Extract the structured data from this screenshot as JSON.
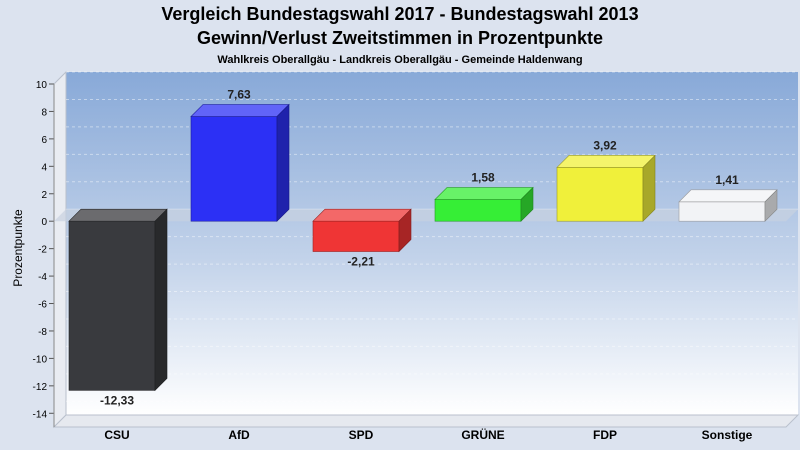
{
  "chart_data": {
    "type": "bar",
    "title": "Vergleich Bundestagswahl 2017 - Bundestagswahl 2013",
    "subtitle": "Gewinn/Verlust Zweitstimmen in Prozentpunkte",
    "caption": "Wahlkreis Oberallgäu - Landkreis Oberallgäu - Gemeinde Haldenwang",
    "xlabel": "",
    "ylabel": "Prozentpunkte",
    "ylim": [
      -15,
      10
    ],
    "yticks": [
      10,
      8,
      6,
      4,
      2,
      0,
      -2,
      -4,
      -6,
      -8,
      -10,
      -12,
      -14
    ],
    "categories": [
      "CSU",
      "AfD",
      "SPD",
      "GRÜNE",
      "FDP",
      "Sonstige"
    ],
    "values": [
      -12.33,
      7.63,
      -2.21,
      1.58,
      3.92,
      1.41
    ],
    "value_labels": [
      "-12,33",
      "7,63",
      "-2,21",
      "1,58",
      "3,92",
      "1,41"
    ],
    "colors": [
      "#393a3e",
      "#2c30f5",
      "#ef3535",
      "#36ee36",
      "#f0f03a",
      "#f2f3f6"
    ],
    "grid": true,
    "legend": "none"
  }
}
